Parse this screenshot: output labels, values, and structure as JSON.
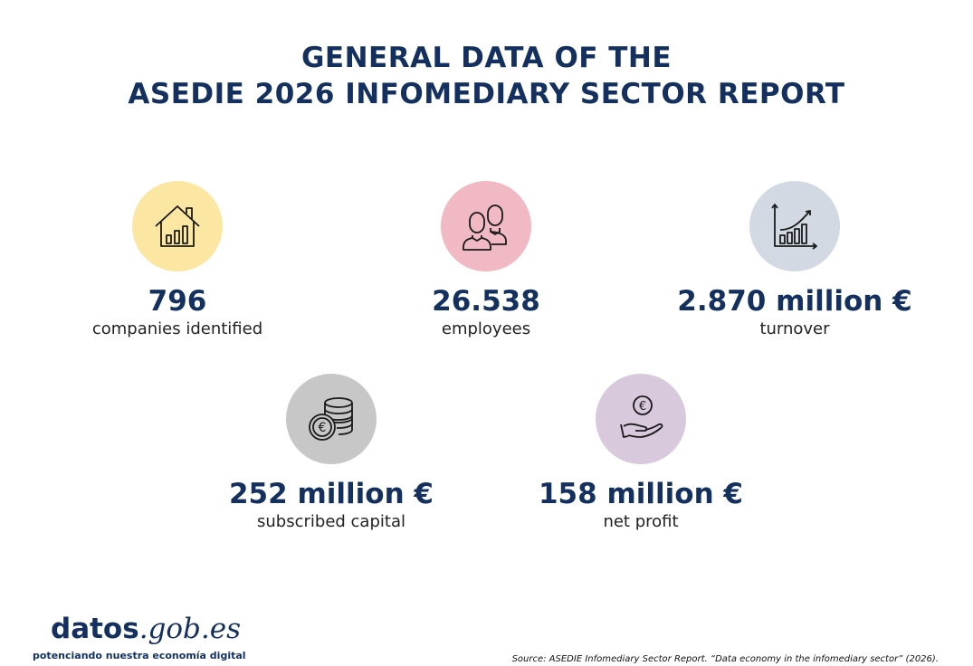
{
  "title": {
    "line1": "GENERAL DATA OF THE",
    "line2": "ASEDIE 2026 INFOMEDIARY SECTOR REPORT"
  },
  "stats": {
    "companies": {
      "value": "796",
      "label": "companies identified",
      "icon": "house-chart-icon",
      "color": "#fbe6a2"
    },
    "employees": {
      "value": "26.538",
      "label": "employees",
      "icon": "people-icon",
      "color": "#f0b9c3"
    },
    "turnover": {
      "value": "2.870 million €",
      "label": "turnover",
      "icon": "growth-chart-icon",
      "color": "#d3d9e3"
    },
    "capital": {
      "value": "252 million €",
      "label": "subscribed capital",
      "icon": "coins-stack-icon",
      "color": "#c7c7c7"
    },
    "profit": {
      "value": "158 million €",
      "label": "net profit",
      "icon": "hand-euro-icon",
      "color": "#d8c9dc"
    }
  },
  "logo": {
    "part1": "datos",
    "part2": ".gob.es",
    "tagline": "potenciando nuestra economía digital"
  },
  "source": "Source: ASEDIE Infomediary Sector Report. “Data economy in the infomediary sector” (2026)."
}
